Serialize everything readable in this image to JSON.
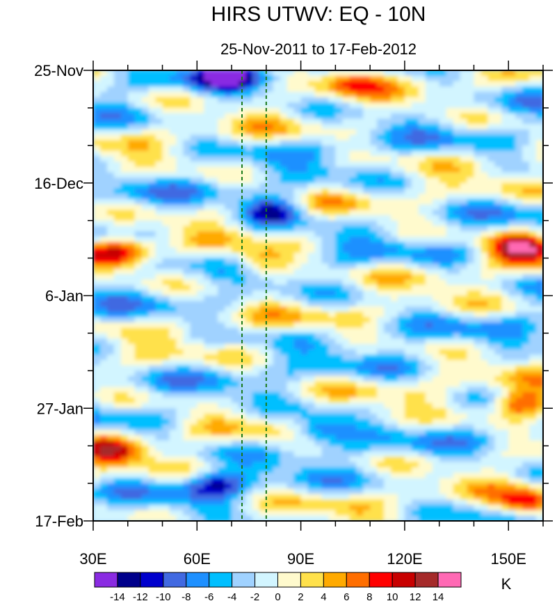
{
  "chart_data": {
    "type": "heatmap",
    "title": "HIRS UTWV: EQ - 10N",
    "subtitle": "25-Nov-2011 to 17-Feb-2012",
    "xlabel": "",
    "ylabel": "",
    "x_range": [
      30,
      160
    ],
    "x_ticks": [
      {
        "value": 30,
        "label": "30E"
      },
      {
        "value": 60,
        "label": "60E"
      },
      {
        "value": 90,
        "label": "90E"
      },
      {
        "value": 120,
        "label": "120E"
      },
      {
        "value": 150,
        "label": "150E"
      }
    ],
    "y_range_days": [
      0,
      84
    ],
    "y_ticks": [
      {
        "day": 0,
        "label": "25-Nov"
      },
      {
        "day": 21,
        "label": "16-Dec"
      },
      {
        "day": 42,
        "label": "6-Jan"
      },
      {
        "day": 63,
        "label": "27-Jan"
      },
      {
        "day": 84,
        "label": "17-Feb"
      }
    ],
    "reference_lines_lon": [
      73,
      80
    ],
    "colorbar": {
      "unit": "K",
      "levels": [
        -14,
        -12,
        -10,
        -8,
        -6,
        -4,
        -2,
        0,
        2,
        4,
        6,
        8,
        10,
        12,
        14
      ],
      "colors": [
        "#8a2be2",
        "#00008b",
        "#0000cd",
        "#4169e1",
        "#1e90ff",
        "#00bfff",
        "#a0d2ff",
        "#d2f5ff",
        "#fffacd",
        "#ffe14b",
        "#ffaa00",
        "#ff6e00",
        "#ff0000",
        "#c80000",
        "#a52a2a",
        "#ff69b4"
      ],
      "labels": [
        "-14",
        "-12",
        "-10",
        "-8",
        "-6",
        "-4",
        "-2",
        "0",
        "2",
        "4",
        "6",
        "8",
        "10",
        "12",
        "14"
      ]
    },
    "features": [
      {
        "name": "warm-westpacific-late-dec",
        "lon": 154,
        "day": 33,
        "value": 15
      },
      {
        "name": "warm-westpacific-late-jan",
        "lon": 154,
        "day": 62,
        "value": 13
      },
      {
        "name": "warm-westpacific-mid-feb",
        "lon": 155,
        "day": 81,
        "value": 11
      },
      {
        "name": "warm-westindian-late-dec",
        "lon": 38,
        "day": 34,
        "value": 10
      },
      {
        "name": "warm-westindian-early-feb",
        "lon": 36,
        "day": 71,
        "value": 10
      },
      {
        "name": "warm-central-late-dec",
        "lon": 78,
        "day": 36,
        "value": 9
      },
      {
        "name": "warm-east-early-dec",
        "lon": 105,
        "day": 2,
        "value": 7
      },
      {
        "name": "dry-north-early-dec",
        "lon": 68,
        "day": 1,
        "value": -11
      },
      {
        "name": "dry-center-mid-dec",
        "lon": 82,
        "day": 26,
        "value": -11
      },
      {
        "name": "dry-southwest-mid-feb",
        "lon": 65,
        "day": 77,
        "value": -9
      },
      {
        "name": "dry-central-early-feb",
        "lon": 95,
        "day": 67,
        "value": -9
      }
    ]
  }
}
